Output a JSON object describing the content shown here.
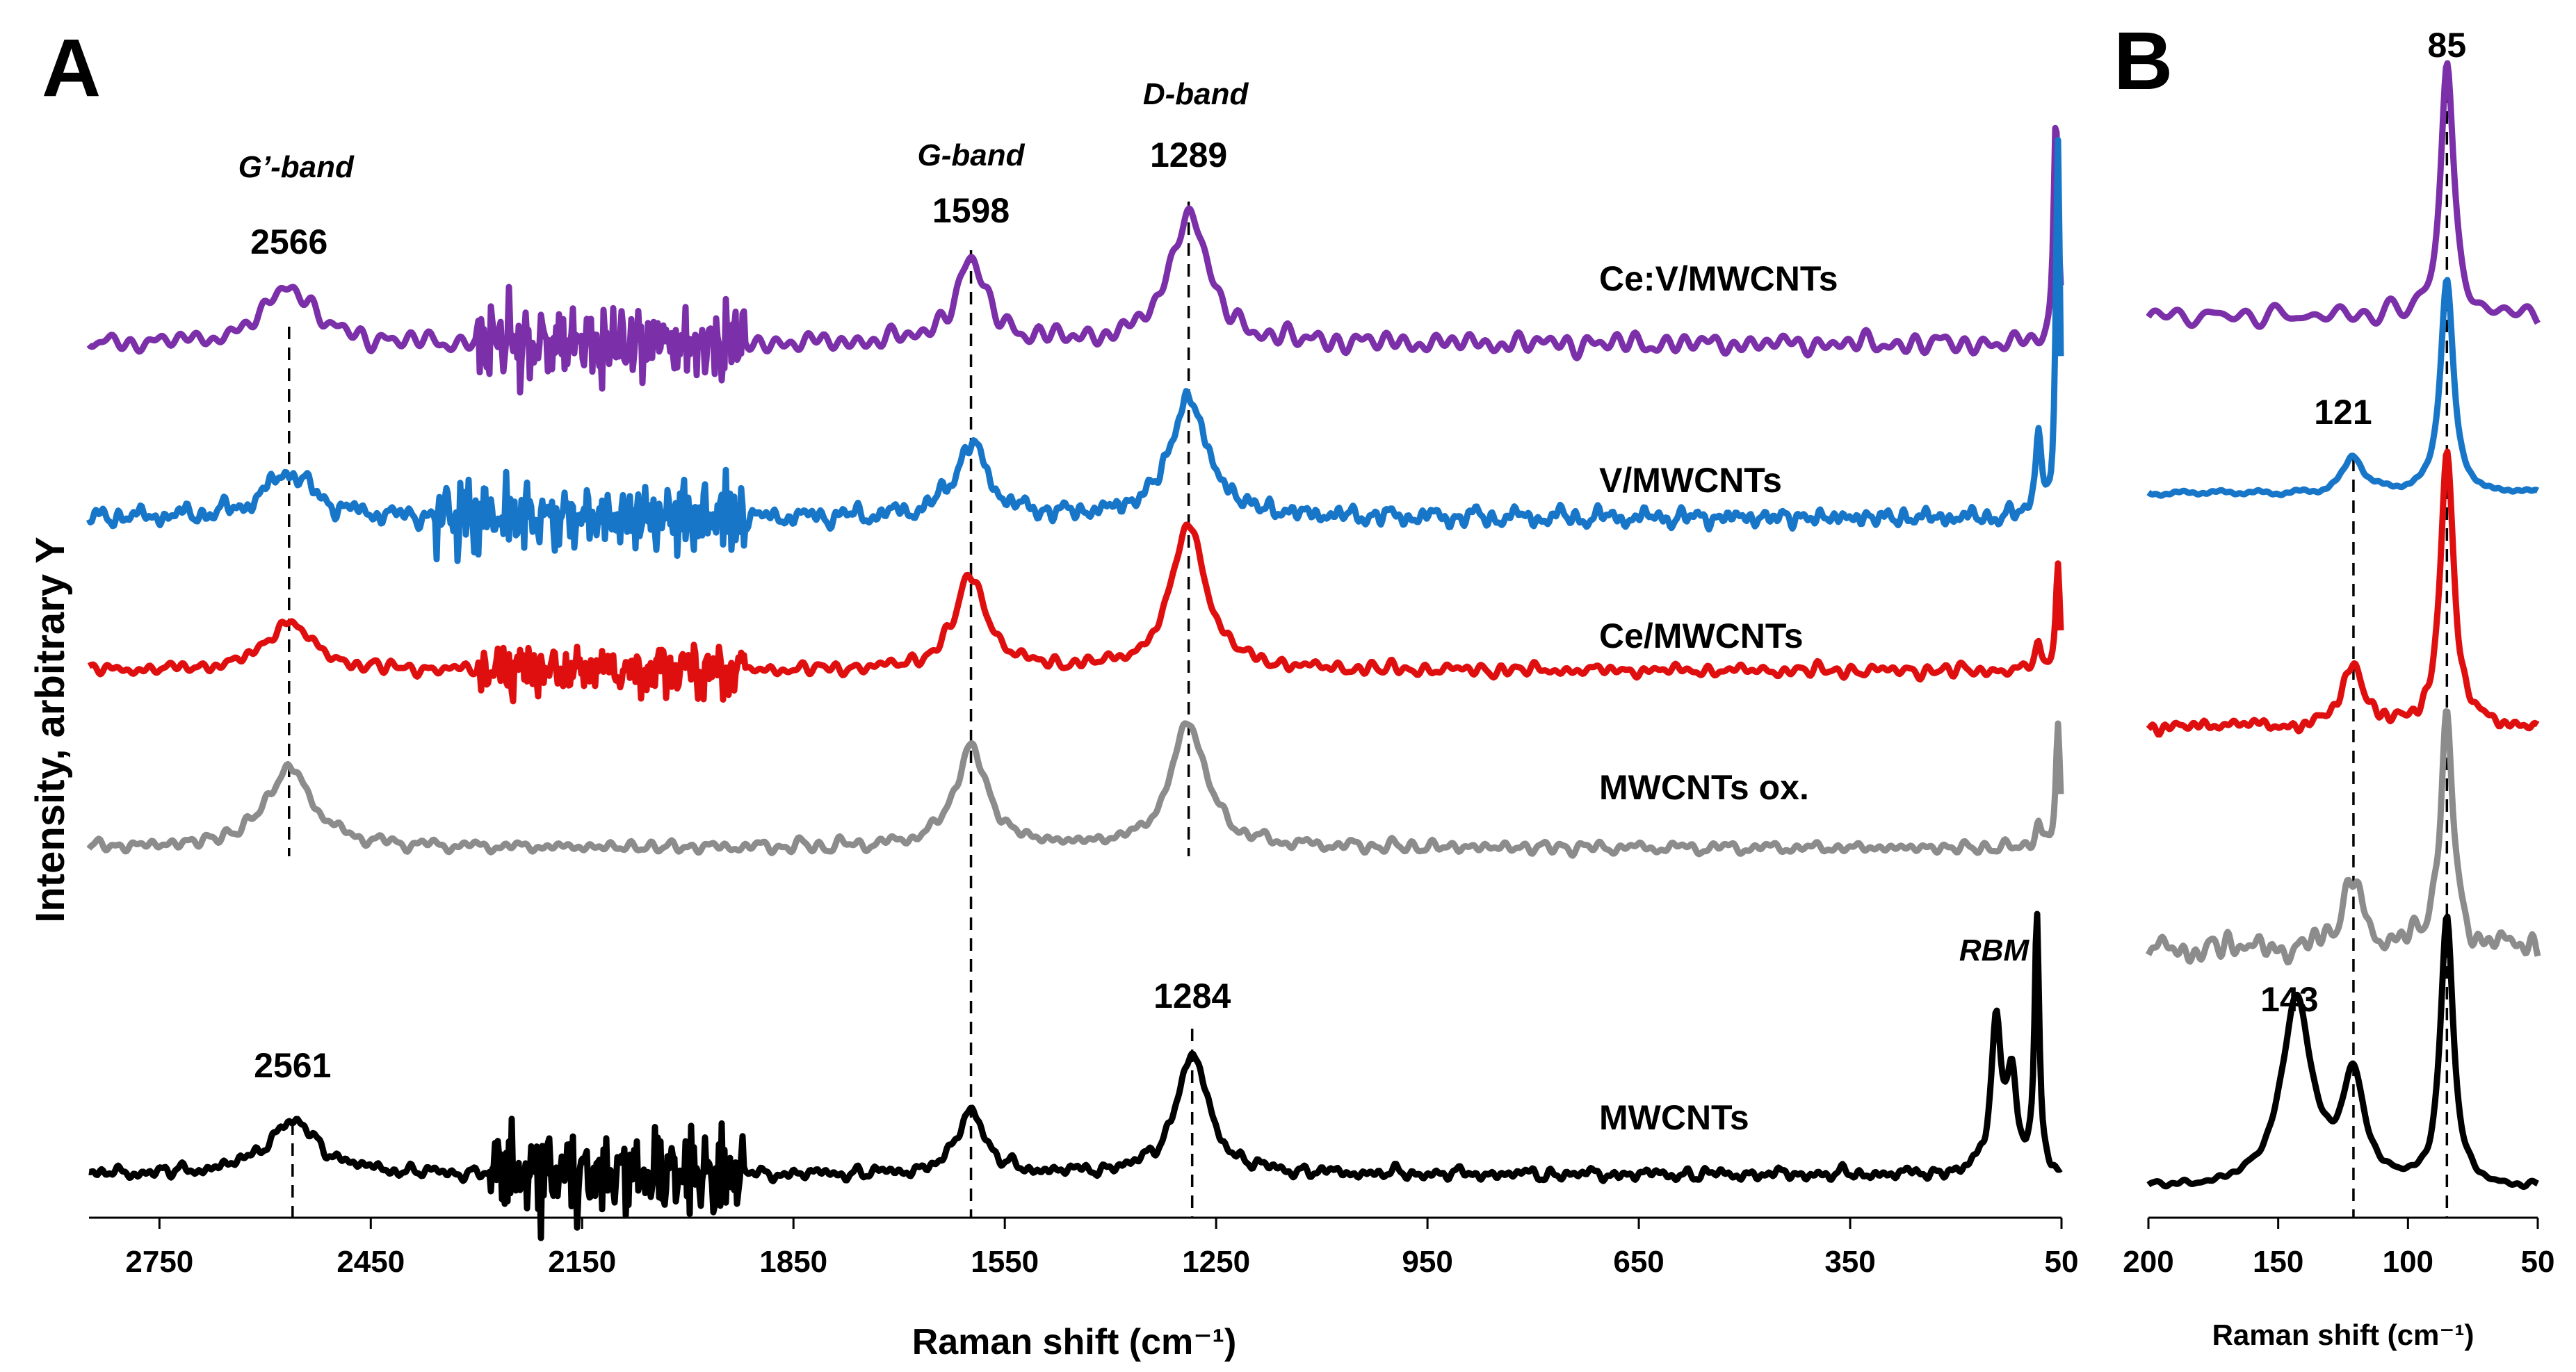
{
  "chart_data": [
    {
      "panel": "A",
      "type": "line",
      "title": "",
      "xlabel": "Raman shift (cm⁻¹)",
      "ylabel": "Intensity, arbitrary Y",
      "xlim": [
        2850,
        50
      ],
      "x_ticks": [
        "2750",
        "2450",
        "2150",
        "1850",
        "1550",
        "1250",
        "950",
        "650",
        "350",
        "50"
      ],
      "series": [
        {
          "name": "Ce:V/MWCNTs",
          "color": "#7B2FA8",
          "offset": 4.0,
          "peaks": [
            [
              2566,
              0.9,
              40
            ],
            [
              1598,
              1.2,
              28
            ],
            [
              1289,
              2.0,
              32
            ],
            [
              58,
              3.5,
              4
            ]
          ],
          "noise": 0.12,
          "noise_zone": [
            2300,
            1920,
            0.45
          ]
        },
        {
          "name": "V/MWCNTs",
          "color": "#1876C9",
          "offset": 2.6,
          "peaks": [
            [
              2566,
              0.7,
              40
            ],
            [
              1598,
              1.1,
              28
            ],
            [
              1289,
              1.8,
              32
            ],
            [
              83,
              1.4,
              5
            ],
            [
              55,
              5.6,
              3.5
            ]
          ],
          "noise": 0.12,
          "noise_zone": [
            2360,
            1920,
            0.45
          ]
        },
        {
          "name": "Ce/MWCNTs",
          "color": "#E00F0F",
          "offset": 1.5,
          "peaks": [
            [
              2566,
              0.75,
              38
            ],
            [
              1598,
              1.4,
              28
            ],
            [
              1289,
              2.2,
              30
            ],
            [
              83,
              0.4,
              5
            ],
            [
              55,
              1.6,
              3.5
            ]
          ],
          "noise": 0.08,
          "noise_zone": [
            2300,
            1920,
            0.3
          ]
        },
        {
          "name": "MWCNTs ox.",
          "color": "#8C8C8C",
          "offset": 0.4,
          "peaks": [
            [
              2566,
              1.2,
              40
            ],
            [
              1598,
              1.5,
              28
            ],
            [
              1289,
              1.9,
              30
            ],
            [
              83,
              0.4,
              5
            ],
            [
              55,
              1.8,
              3.5
            ]
          ],
          "noise": 0.08,
          "noise_zone": [
            2300,
            1920,
            0.0
          ]
        },
        {
          "name": "MWCNTs",
          "color": "#000000",
          "offset": -1.5,
          "peaks": [
            [
              2561,
              0.8,
              45
            ],
            [
              1598,
              1.0,
              22
            ],
            [
              1284,
              1.8,
              28
            ],
            [
              143,
              2.2,
              9
            ],
            [
              121,
              1.4,
              9
            ],
            [
              85,
              3.8,
              4
            ]
          ],
          "noise": 0.08,
          "noise_zone": [
            2280,
            1920,
            0.55
          ]
        }
      ],
      "peak_labels": [
        {
          "x": 2566,
          "text": "2566"
        },
        {
          "x": 1598,
          "text": "1598"
        },
        {
          "x": 1289,
          "text": "1289"
        },
        {
          "x": 2561,
          "text": "2561"
        },
        {
          "x": 1284,
          "text": "1284"
        }
      ],
      "band_labels": [
        {
          "x": 2566,
          "text": "G’-band"
        },
        {
          "x": 1598,
          "text": "G-band"
        },
        {
          "x": 1289,
          "text": "D-band"
        },
        {
          "x": 100,
          "text": "RBM"
        }
      ]
    },
    {
      "panel": "B",
      "type": "line",
      "title": "",
      "xlabel": "Raman shift (cm⁻¹)",
      "xlim": [
        200,
        50
      ],
      "x_ticks": [
        "200",
        "150",
        "100",
        "50"
      ],
      "series": [
        {
          "name": "Ce:V/MWCNTs",
          "color": "#7B2FA8",
          "peaks": [
            [
              85,
              1.0,
              3.0
            ]
          ],
          "noise": 0.04
        },
        {
          "name": "V/MWCNTs",
          "color": "#1876C9",
          "peaks": [
            [
              121,
              0.17,
              4.5
            ],
            [
              85,
              1.0,
              3.0
            ]
          ],
          "noise": 0.01
        },
        {
          "name": "Ce/MWCNTs",
          "color": "#E00F0F",
          "peaks": [
            [
              121,
              0.22,
              4.5
            ],
            [
              85,
              1.0,
              3.0
            ]
          ],
          "noise": 0.02
        },
        {
          "name": "MWCNTs ox.",
          "color": "#8C8C8C",
          "peaks": [
            [
              121,
              0.3,
              4.5
            ],
            [
              85,
              1.0,
              3.0
            ]
          ],
          "noise": 0.05
        },
        {
          "name": "MWCNTs",
          "color": "#000000",
          "peaks": [
            [
              143,
              0.7,
              7.0
            ],
            [
              121,
              0.4,
              5.0
            ],
            [
              85,
              1.0,
              3.0
            ]
          ],
          "noise": 0.01
        }
      ],
      "peak_labels": [
        {
          "x": 85,
          "text": "85"
        },
        {
          "x": 121,
          "text": "121"
        },
        {
          "x": 143,
          "text": "143"
        }
      ]
    }
  ],
  "panels": {
    "a_letter": "A",
    "b_letter": "B"
  }
}
